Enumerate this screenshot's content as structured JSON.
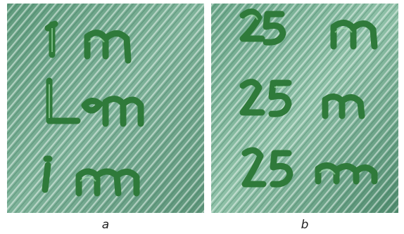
{
  "panels": [
    {
      "caption": "a"
    },
    {
      "caption": "b"
    }
  ]
}
